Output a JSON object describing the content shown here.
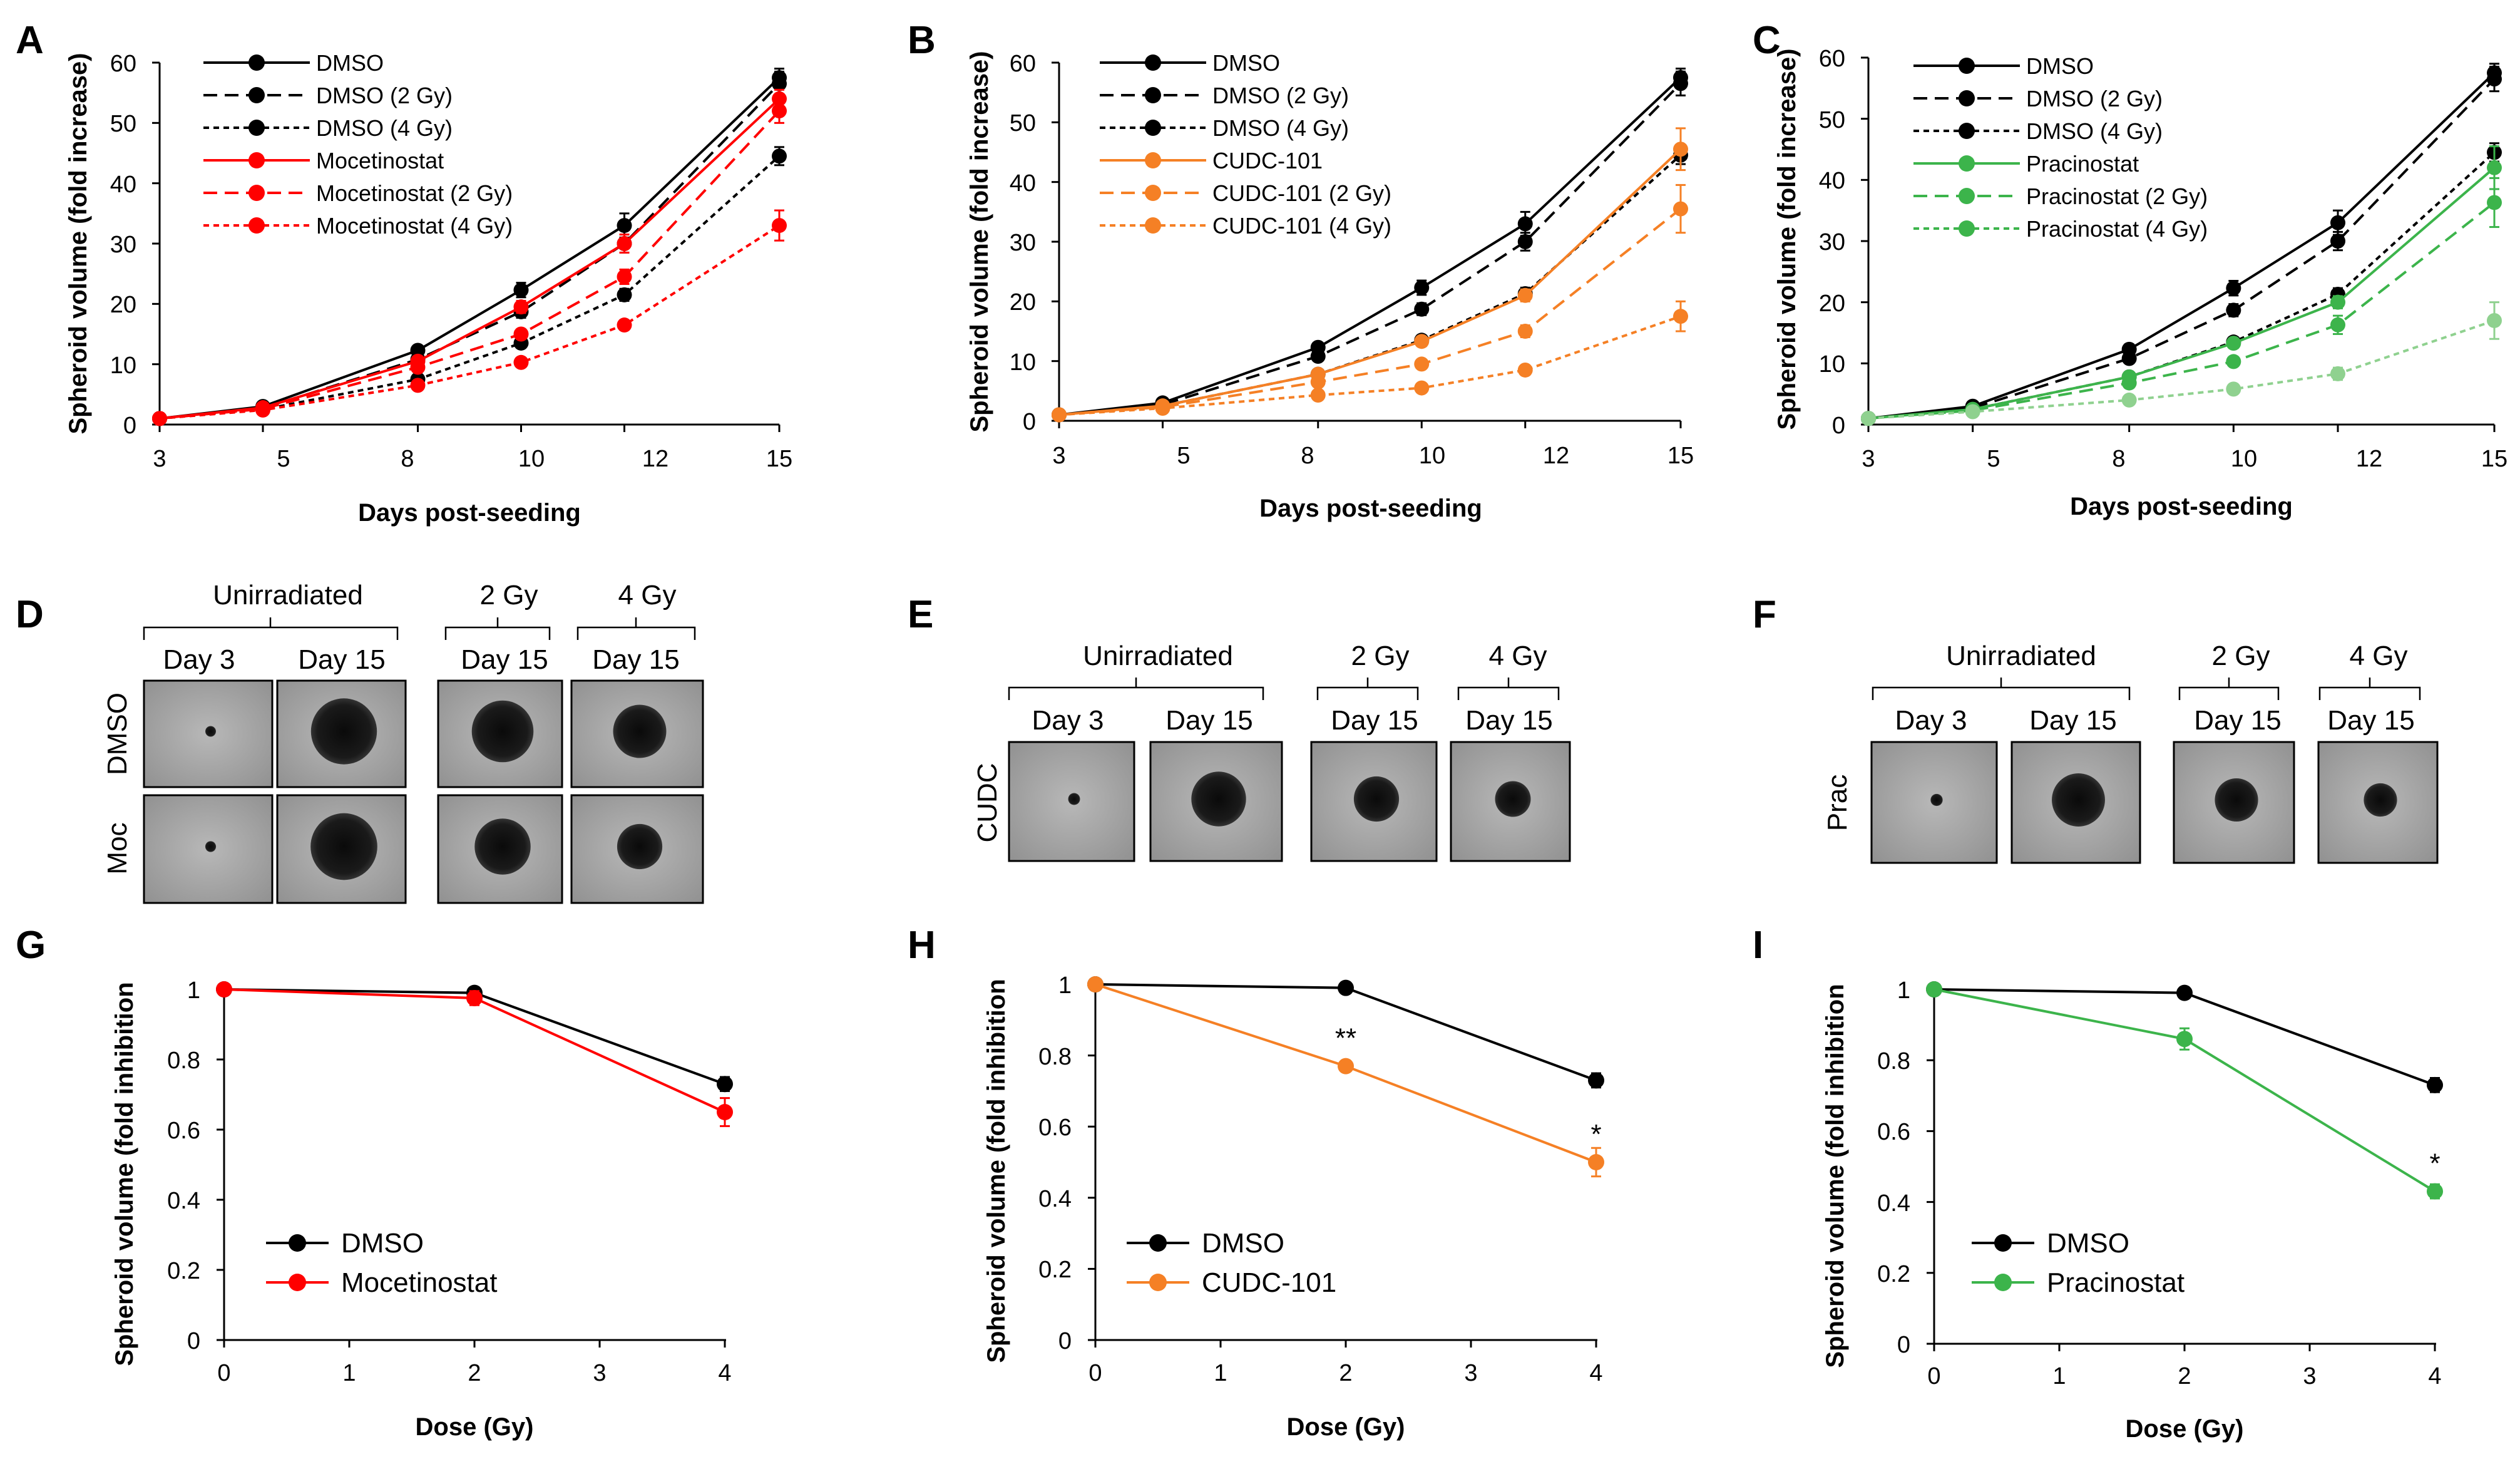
{
  "panel_letters": [
    "A",
    "B",
    "C",
    "D",
    "E",
    "F",
    "G",
    "H",
    "I"
  ],
  "colors": {
    "black": "#000000",
    "red": "#ff0000",
    "orange": "#f58025",
    "green": "#3cb44b",
    "lightgreen": "#8fd18f"
  },
  "chart_data": [
    {
      "id": "A",
      "type": "line",
      "xlabel": "Days post-seeding",
      "ylabel": "Spheroid volume (fold increase)",
      "x": [
        3,
        5,
        8,
        10,
        12,
        15
      ],
      "xticks": [
        3,
        5,
        8,
        10,
        12,
        15
      ],
      "ylim": [
        0,
        60
      ],
      "yticks": [
        0,
        10,
        20,
        30,
        40,
        50,
        60
      ],
      "series": [
        {
          "name": "DMSO",
          "color": "#000000",
          "dash": "solid",
          "values": [
            1,
            3.0,
            12.3,
            22.3,
            33.0,
            57.5
          ],
          "err": [
            0.2,
            0.3,
            0.8,
            1.2,
            2.0,
            1.5
          ]
        },
        {
          "name": "DMSO (2 Gy)",
          "color": "#000000",
          "dash": "long",
          "values": [
            1,
            2.7,
            10.8,
            18.7,
            30.0,
            56.5
          ],
          "err": [
            0.2,
            0.3,
            0.7,
            1.0,
            1.5,
            2.0
          ]
        },
        {
          "name": "DMSO (4 Gy)",
          "color": "#000000",
          "dash": "short",
          "values": [
            1,
            2.5,
            7.5,
            13.5,
            21.5,
            44.5
          ],
          "err": [
            0.2,
            0.3,
            0.5,
            0.8,
            1.0,
            1.5
          ]
        },
        {
          "name": "Mocetinostat",
          "color": "#ff0000",
          "dash": "solid",
          "values": [
            1,
            2.8,
            10.5,
            19.5,
            30.0,
            54.0
          ],
          "err": [
            0.2,
            0.3,
            0.7,
            1.0,
            1.5,
            1.5
          ]
        },
        {
          "name": "Mocetinostat (2 Gy)",
          "color": "#ff0000",
          "dash": "long",
          "values": [
            1,
            2.6,
            9.5,
            15.0,
            24.5,
            52.0
          ],
          "err": [
            0.2,
            0.3,
            0.6,
            0.8,
            1.2,
            2.0
          ]
        },
        {
          "name": "Mocetinostat (4 Gy)",
          "color": "#ff0000",
          "dash": "short",
          "values": [
            1,
            2.4,
            6.5,
            10.3,
            16.5,
            33.0
          ],
          "err": [
            0.2,
            0.2,
            0.5,
            0.6,
            0.8,
            2.5
          ]
        }
      ]
    },
    {
      "id": "B",
      "type": "line",
      "xlabel": "Days post-seeding",
      "ylabel": "Spheroid volume (fold increase)",
      "x": [
        3,
        5,
        8,
        10,
        12,
        15
      ],
      "xticks": [
        3,
        5,
        8,
        10,
        12,
        15
      ],
      "ylim": [
        0,
        60
      ],
      "yticks": [
        0,
        10,
        20,
        30,
        40,
        50,
        60
      ],
      "series": [
        {
          "name": "DMSO",
          "color": "#000000",
          "dash": "solid",
          "values": [
            1,
            3.0,
            12.3,
            22.3,
            33.0,
            57.5
          ],
          "err": [
            0.2,
            0.3,
            0.8,
            1.2,
            2.0,
            1.5
          ]
        },
        {
          "name": "DMSO (2 Gy)",
          "color": "#000000",
          "dash": "long",
          "values": [
            1,
            2.7,
            10.8,
            18.7,
            30.0,
            56.5
          ],
          "err": [
            0.2,
            0.3,
            0.7,
            1.0,
            1.5,
            2.0
          ]
        },
        {
          "name": "DMSO (4 Gy)",
          "color": "#000000",
          "dash": "short",
          "values": [
            1,
            2.5,
            7.8,
            13.5,
            21.3,
            44.5
          ],
          "err": [
            0.2,
            0.3,
            0.5,
            0.8,
            1.0,
            1.5
          ]
        },
        {
          "name": "CUDC-101",
          "color": "#f58025",
          "dash": "solid",
          "values": [
            1,
            2.5,
            7.8,
            13.3,
            21.0,
            45.5
          ],
          "err": [
            0.2,
            0.3,
            0.5,
            0.8,
            1.0,
            3.5
          ]
        },
        {
          "name": "CUDC-101 (2 Gy)",
          "color": "#f58025",
          "dash": "long",
          "values": [
            1,
            2.3,
            6.5,
            9.5,
            15.0,
            35.5
          ],
          "err": [
            0.2,
            0.3,
            0.4,
            0.6,
            1.0,
            4.0
          ]
        },
        {
          "name": "CUDC-101 (4 Gy)",
          "color": "#f58025",
          "dash": "short",
          "values": [
            1,
            2.1,
            4.3,
            5.5,
            8.5,
            17.5
          ],
          "err": [
            0.2,
            0.2,
            0.3,
            0.4,
            0.5,
            2.5
          ]
        }
      ]
    },
    {
      "id": "C",
      "type": "line",
      "xlabel": "Days post-seeding",
      "ylabel": "Spheroid volume (fold increase)",
      "x": [
        3,
        5,
        8,
        10,
        12,
        15
      ],
      "xticks": [
        3,
        5,
        8,
        10,
        12,
        15
      ],
      "ylim": [
        0,
        60
      ],
      "yticks": [
        0,
        10,
        20,
        30,
        40,
        50,
        60
      ],
      "series": [
        {
          "name": "DMSO",
          "color": "#000000",
          "dash": "solid",
          "values": [
            1,
            3.0,
            12.3,
            22.3,
            33.0,
            57.5
          ],
          "err": [
            0.2,
            0.3,
            0.8,
            1.2,
            2.0,
            1.5
          ]
        },
        {
          "name": "DMSO (2 Gy)",
          "color": "#000000",
          "dash": "long",
          "values": [
            1,
            2.7,
            10.8,
            18.7,
            30.0,
            56.5
          ],
          "err": [
            0.2,
            0.3,
            0.7,
            1.0,
            1.5,
            2.0
          ]
        },
        {
          "name": "DMSO (4 Gy)",
          "color": "#000000",
          "dash": "short",
          "values": [
            1,
            2.5,
            7.8,
            13.5,
            21.3,
            44.5
          ],
          "err": [
            0.2,
            0.3,
            0.5,
            0.8,
            1.0,
            1.5
          ]
        },
        {
          "name": "Pracinostat",
          "color": "#3cb44b",
          "dash": "solid",
          "values": [
            1,
            2.5,
            7.8,
            13.3,
            20.0,
            42.0
          ],
          "err": [
            0.2,
            0.3,
            0.5,
            0.8,
            1.0,
            3.5
          ]
        },
        {
          "name": "Pracinostat (2 Gy)",
          "color": "#3cb44b",
          "dash": "long",
          "values": [
            1,
            2.3,
            6.8,
            10.3,
            16.3,
            36.3
          ],
          "err": [
            0.2,
            0.3,
            0.4,
            0.6,
            1.5,
            4.0
          ]
        },
        {
          "name": "Pracinostat (4 Gy)",
          "color": "#8fd18f",
          "dash": "short",
          "values": [
            1,
            2.1,
            4.0,
            5.8,
            8.3,
            17.0
          ],
          "err": [
            0.2,
            0.2,
            0.3,
            0.5,
            1.0,
            3.0
          ]
        }
      ]
    },
    {
      "id": "G",
      "type": "line",
      "xlabel": "Dose (Gy)",
      "ylabel": "Spheroid volume (fold inhibition",
      "x": [
        0,
        2,
        4
      ],
      "xticks": [
        0,
        1,
        2,
        3,
        4
      ],
      "ylim": [
        0,
        1
      ],
      "yticks": [
        0,
        0.2,
        0.4,
        0.6,
        0.8,
        1
      ],
      "series": [
        {
          "name": "DMSO",
          "color": "#000000",
          "dash": "solid",
          "values": [
            1,
            0.99,
            0.73
          ],
          "err": [
            0,
            0.01,
            0.02
          ]
        },
        {
          "name": "Mocetinostat",
          "color": "#ff0000",
          "dash": "solid",
          "values": [
            1,
            0.975,
            0.65
          ],
          "err": [
            0,
            0.02,
            0.04
          ]
        }
      ],
      "annotations": []
    },
    {
      "id": "H",
      "type": "line",
      "xlabel": "Dose (Gy)",
      "ylabel": "Spheroid volume (fold inhibition",
      "x": [
        0,
        2,
        4
      ],
      "xticks": [
        0,
        1,
        2,
        3,
        4
      ],
      "ylim": [
        0,
        1
      ],
      "yticks": [
        0,
        0.2,
        0.4,
        0.6,
        0.8,
        1
      ],
      "series": [
        {
          "name": "DMSO",
          "color": "#000000",
          "dash": "solid",
          "values": [
            1,
            0.99,
            0.73
          ],
          "err": [
            0,
            0.01,
            0.02
          ]
        },
        {
          "name": "CUDC-101",
          "color": "#f58025",
          "dash": "solid",
          "values": [
            1,
            0.77,
            0.5
          ],
          "err": [
            0,
            0.01,
            0.04
          ]
        }
      ],
      "annotations": [
        {
          "text": "**",
          "x": 2,
          "y": 0.77
        },
        {
          "text": "*",
          "x": 4,
          "y": 0.5
        }
      ]
    },
    {
      "id": "I",
      "type": "line",
      "xlabel": "Dose (Gy)",
      "ylabel": "Spheroid volume (fold inhibition",
      "x": [
        0,
        2,
        4
      ],
      "xticks": [
        0,
        1,
        2,
        3,
        4
      ],
      "ylim": [
        0,
        1
      ],
      "yticks": [
        0,
        0.2,
        0.4,
        0.6,
        0.8,
        1
      ],
      "series": [
        {
          "name": "DMSO",
          "color": "#000000",
          "dash": "solid",
          "values": [
            1,
            0.99,
            0.73
          ],
          "err": [
            0,
            0.01,
            0.02
          ]
        },
        {
          "name": "Pracinostat",
          "color": "#3cb44b",
          "dash": "solid",
          "values": [
            1,
            0.86,
            0.43
          ],
          "err": [
            0,
            0.03,
            0.02
          ]
        }
      ],
      "annotations": [
        {
          "text": "*",
          "x": 4,
          "y": 0.43
        }
      ]
    }
  ],
  "image_panels": [
    {
      "id": "D",
      "group_labels": [
        "Unirradiated",
        "2 Gy",
        "4 Gy"
      ],
      "column_labels": [
        "Day 3",
        "Day 15",
        "Day 15",
        "Day 15"
      ],
      "row_labels": [
        "DMSO",
        "Moc"
      ],
      "spheroid_size": [
        [
          0.1,
          0.62,
          0.58,
          0.5
        ],
        [
          0.1,
          0.62,
          0.52,
          0.42
        ]
      ]
    },
    {
      "id": "E",
      "group_labels": [
        "Unirradiated",
        "2 Gy",
        "4 Gy"
      ],
      "column_labels": [
        "Day 3",
        "Day 15",
        "Day 15",
        "Day 15"
      ],
      "row_labels": [
        "CUDC"
      ],
      "spheroid_size": [
        [
          0.1,
          0.46,
          0.38,
          0.3
        ]
      ]
    },
    {
      "id": "F",
      "group_labels": [
        "Unirradiated",
        "2 Gy",
        "4 Gy"
      ],
      "column_labels": [
        "Day 3",
        "Day 15",
        "Day 15",
        "Day 15"
      ],
      "row_labels": [
        "Prac"
      ],
      "spheroid_size": [
        [
          0.1,
          0.44,
          0.36,
          0.28
        ]
      ]
    }
  ]
}
